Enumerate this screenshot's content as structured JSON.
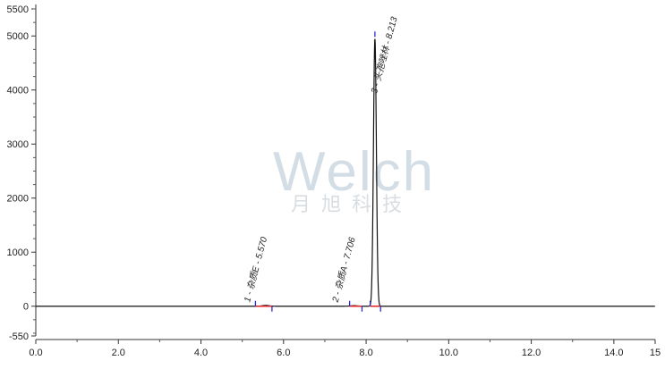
{
  "chart_data": {
    "type": "line",
    "title": "",
    "xlabel": "",
    "ylabel": "",
    "xlim": [
      0,
      15
    ],
    "ylim": [
      -550,
      5500
    ],
    "x_ticks": [
      "0.0",
      "2.0",
      "4.0",
      "6.0",
      "8.0",
      "10.0",
      "12.0",
      "14.0",
      "15"
    ],
    "y_ticks": [
      "-550",
      "0",
      "1000",
      "2000",
      "3000",
      "4000",
      "5000",
      "5500"
    ],
    "grid": false,
    "peaks": [
      {
        "label": "1 - 杂质E - 5.570",
        "rt": 5.57,
        "height": 15,
        "start": 5.32,
        "end": 5.72
      },
      {
        "label": "2 - 杂质A - 7.706",
        "rt": 7.706,
        "height": 10,
        "start": 7.6,
        "end": 7.9
      },
      {
        "label": "3 - 头孢唑林 - 8.213",
        "rt": 8.213,
        "height": 4950,
        "start": 8.1,
        "end": 8.35
      }
    ],
    "colors": {
      "trace": "#111111",
      "baseline": "#e02020",
      "marker": "#2a2ad0"
    }
  },
  "watermark": {
    "brand": "Welch",
    "subtitle": "月旭科技"
  }
}
